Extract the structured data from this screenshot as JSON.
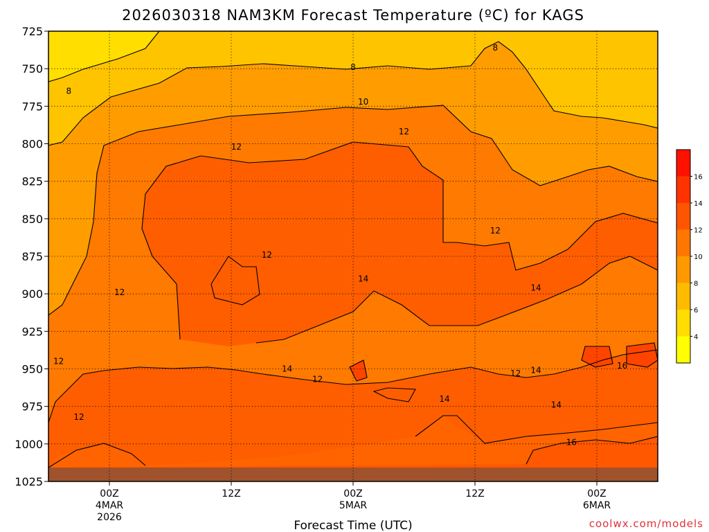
{
  "chart_data": {
    "type": "heatmap",
    "title": "2026030318 NAM3KM Forecast Temperature (ºC) for KAGS",
    "xlabel": "Forecast Time (UTC)",
    "ylabel": "",
    "credit": "coolwx.com/models",
    "y_axis": {
      "unit": "hPa",
      "reversed": true,
      "range": [
        725,
        1025
      ],
      "ticks": [
        725,
        750,
        775,
        800,
        825,
        850,
        875,
        900,
        925,
        950,
        975,
        1000,
        1025
      ]
    },
    "x_axis": {
      "range_hours": [
        0,
        60
      ],
      "ticks": [
        {
          "line1": "00Z",
          "line2": "4MAR",
          "line3": "2026",
          "hour": 6
        },
        {
          "line1": "12Z",
          "line2": "",
          "line3": "",
          "hour": 18
        },
        {
          "line1": "00Z",
          "line2": "5MAR",
          "line3": "",
          "hour": 30
        },
        {
          "line1": "12Z",
          "line2": "",
          "line3": "",
          "hour": 42
        },
        {
          "line1": "00Z",
          "line2": "6MAR",
          "line3": "",
          "hour": 54
        }
      ]
    },
    "colorbar": {
      "levels": [
        2,
        4,
        6,
        8,
        10,
        12,
        14,
        16,
        18
      ],
      "tick_labels": [
        "4",
        "6",
        "8",
        "10",
        "12",
        "14",
        "16"
      ],
      "colors": [
        "#ffff00",
        "#ffdd00",
        "#ffbb00",
        "#ff9900",
        "#ff7700",
        "#ff5500",
        "#ff3300",
        "#ff1100"
      ]
    },
    "grid": true,
    "ground_color": "#a0522d",
    "contour_levels": [
      8,
      10,
      12,
      14,
      16
    ],
    "contour_labels": [
      {
        "text": "8",
        "hour": 2.0,
        "p": 765
      },
      {
        "text": "8",
        "hour": 30.0,
        "p": 749
      },
      {
        "text": "8",
        "hour": 44.0,
        "p": 736
      },
      {
        "text": "10",
        "hour": 31.0,
        "p": 772
      },
      {
        "text": "12",
        "hour": 18.5,
        "p": 802
      },
      {
        "text": "12",
        "hour": 35.0,
        "p": 792
      },
      {
        "text": "12",
        "hour": 21.5,
        "p": 874
      },
      {
        "text": "12",
        "hour": 7.0,
        "p": 899
      },
      {
        "text": "12",
        "hour": 1.0,
        "p": 945
      },
      {
        "text": "12",
        "hour": 26.5,
        "p": 957
      },
      {
        "text": "12",
        "hour": 3.0,
        "p": 982
      },
      {
        "text": "12",
        "hour": 44.0,
        "p": 858
      },
      {
        "text": "12",
        "hour": 46.0,
        "p": 953
      },
      {
        "text": "14",
        "hour": 31.0,
        "p": 890
      },
      {
        "text": "14",
        "hour": 23.5,
        "p": 950
      },
      {
        "text": "14",
        "hour": 48.0,
        "p": 896
      },
      {
        "text": "14",
        "hour": 48.0,
        "p": 951
      },
      {
        "text": "14",
        "hour": 39.0,
        "p": 970
      },
      {
        "text": "14",
        "hour": 50.0,
        "p": 974
      },
      {
        "text": "16",
        "hour": 56.5,
        "p": 948
      },
      {
        "text": "16",
        "hour": 51.5,
        "p": 999
      }
    ]
  }
}
